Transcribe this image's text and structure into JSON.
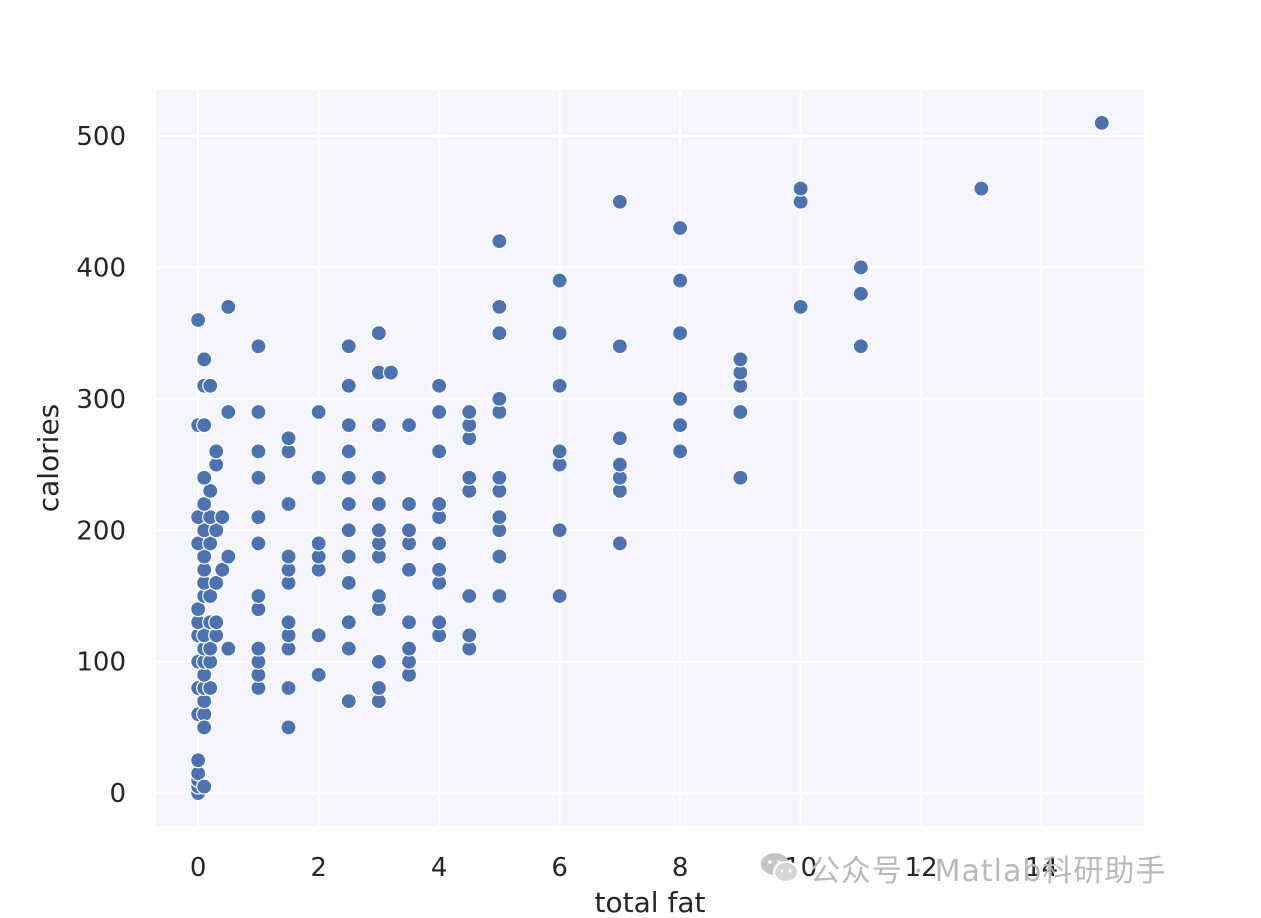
{
  "chart_data": {
    "type": "scatter",
    "title": "",
    "xlabel": "total fat",
    "ylabel": "calories",
    "xlim": [
      -0.7,
      15.7
    ],
    "ylim": [
      -25,
      535
    ],
    "xticks": [
      0,
      2,
      4,
      6,
      8,
      10,
      12,
      14
    ],
    "yticks": [
      0,
      100,
      200,
      300,
      400,
      500
    ],
    "grid": true,
    "background": "#f5f6fd",
    "grid_color": "#ffffff",
    "marker_color": "#4c72b0",
    "points": [
      [
        0,
        0
      ],
      [
        0,
        5
      ],
      [
        0,
        10
      ],
      [
        0,
        15
      ],
      [
        0,
        25
      ],
      [
        0.1,
        5
      ],
      [
        0,
        60
      ],
      [
        0.1,
        60
      ],
      [
        0.1,
        50
      ],
      [
        0.1,
        70
      ],
      [
        0,
        80
      ],
      [
        0.1,
        80
      ],
      [
        0.2,
        80
      ],
      [
        0.1,
        90
      ],
      [
        0,
        100
      ],
      [
        0.1,
        100
      ],
      [
        0.2,
        100
      ],
      [
        0.1,
        110
      ],
      [
        0.2,
        110
      ],
      [
        0,
        120
      ],
      [
        0.1,
        120
      ],
      [
        0.3,
        120
      ],
      [
        0,
        130
      ],
      [
        0.2,
        130
      ],
      [
        0.3,
        130
      ],
      [
        0,
        140
      ],
      [
        0.1,
        150
      ],
      [
        0.2,
        150
      ],
      [
        0.1,
        160
      ],
      [
        0.3,
        160
      ],
      [
        0.1,
        170
      ],
      [
        0.4,
        170
      ],
      [
        0.1,
        180
      ],
      [
        0.5,
        180
      ],
      [
        0,
        190
      ],
      [
        0.2,
        190
      ],
      [
        0.1,
        200
      ],
      [
        0.3,
        200
      ],
      [
        0,
        210
      ],
      [
        0.2,
        210
      ],
      [
        0.4,
        210
      ],
      [
        0.1,
        220
      ],
      [
        0.2,
        230
      ],
      [
        0.1,
        240
      ],
      [
        0.3,
        250
      ],
      [
        0.3,
        260
      ],
      [
        0,
        280
      ],
      [
        0.1,
        280
      ],
      [
        0.5,
        290
      ],
      [
        0.1,
        310
      ],
      [
        0.2,
        310
      ],
      [
        0.1,
        330
      ],
      [
        0,
        360
      ],
      [
        0.5,
        370
      ],
      [
        0.5,
        110
      ],
      [
        1,
        80
      ],
      [
        1,
        90
      ],
      [
        1,
        100
      ],
      [
        1,
        110
      ],
      [
        1,
        140
      ],
      [
        1,
        150
      ],
      [
        1,
        190
      ],
      [
        1,
        210
      ],
      [
        1,
        240
      ],
      [
        1,
        260
      ],
      [
        1,
        290
      ],
      [
        1,
        340
      ],
      [
        1.5,
        50
      ],
      [
        1.5,
        80
      ],
      [
        1.5,
        110
      ],
      [
        1.5,
        120
      ],
      [
        1.5,
        130
      ],
      [
        1.5,
        160
      ],
      [
        1.5,
        170
      ],
      [
        1.5,
        180
      ],
      [
        1.5,
        220
      ],
      [
        1.5,
        260
      ],
      [
        1.5,
        270
      ],
      [
        2,
        90
      ],
      [
        2,
        120
      ],
      [
        2,
        170
      ],
      [
        2,
        180
      ],
      [
        2,
        190
      ],
      [
        2,
        240
      ],
      [
        2,
        290
      ],
      [
        2.5,
        70
      ],
      [
        2.5,
        110
      ],
      [
        2.5,
        130
      ],
      [
        2.5,
        160
      ],
      [
        2.5,
        180
      ],
      [
        2.5,
        200
      ],
      [
        2.5,
        220
      ],
      [
        2.5,
        240
      ],
      [
        2.5,
        260
      ],
      [
        2.5,
        280
      ],
      [
        2.5,
        310
      ],
      [
        2.5,
        340
      ],
      [
        3,
        70
      ],
      [
        3,
        80
      ],
      [
        3,
        100
      ],
      [
        3,
        140
      ],
      [
        3,
        150
      ],
      [
        3,
        180
      ],
      [
        3,
        190
      ],
      [
        3,
        200
      ],
      [
        3,
        220
      ],
      [
        3,
        240
      ],
      [
        3,
        280
      ],
      [
        3,
        320
      ],
      [
        3,
        350
      ],
      [
        3.2,
        320
      ],
      [
        3.5,
        90
      ],
      [
        3.5,
        100
      ],
      [
        3.5,
        110
      ],
      [
        3.5,
        130
      ],
      [
        3.5,
        170
      ],
      [
        3.5,
        190
      ],
      [
        3.5,
        200
      ],
      [
        3.5,
        220
      ],
      [
        3.5,
        280
      ],
      [
        4,
        120
      ],
      [
        4,
        130
      ],
      [
        4,
        160
      ],
      [
        4,
        170
      ],
      [
        4,
        190
      ],
      [
        4,
        210
      ],
      [
        4,
        220
      ],
      [
        4,
        260
      ],
      [
        4,
        290
      ],
      [
        4,
        310
      ],
      [
        4.5,
        110
      ],
      [
        4.5,
        120
      ],
      [
        4.5,
        150
      ],
      [
        4.5,
        230
      ],
      [
        4.5,
        240
      ],
      [
        4.5,
        270
      ],
      [
        4.5,
        280
      ],
      [
        4.5,
        290
      ],
      [
        5,
        150
      ],
      [
        5,
        180
      ],
      [
        5,
        200
      ],
      [
        5,
        210
      ],
      [
        5,
        230
      ],
      [
        5,
        240
      ],
      [
        5,
        290
      ],
      [
        5,
        300
      ],
      [
        5,
        350
      ],
      [
        5,
        370
      ],
      [
        5,
        420
      ],
      [
        6,
        150
      ],
      [
        6,
        200
      ],
      [
        6,
        250
      ],
      [
        6,
        260
      ],
      [
        6,
        310
      ],
      [
        6,
        350
      ],
      [
        6,
        390
      ],
      [
        7,
        190
      ],
      [
        7,
        230
      ],
      [
        7,
        240
      ],
      [
        7,
        250
      ],
      [
        7,
        270
      ],
      [
        7,
        340
      ],
      [
        7,
        450
      ],
      [
        8,
        260
      ],
      [
        8,
        280
      ],
      [
        8,
        300
      ],
      [
        8,
        350
      ],
      [
        8,
        390
      ],
      [
        8,
        430
      ],
      [
        9,
        240
      ],
      [
        9,
        290
      ],
      [
        9,
        310
      ],
      [
        9,
        320
      ],
      [
        9,
        330
      ],
      [
        10,
        370
      ],
      [
        10,
        450
      ],
      [
        10,
        460
      ],
      [
        11,
        340
      ],
      [
        11,
        380
      ],
      [
        11,
        400
      ],
      [
        13,
        460
      ],
      [
        15,
        510
      ]
    ]
  },
  "watermark": {
    "icon": "wechat-icon",
    "text": "公众号 · Matlab科研助手"
  }
}
